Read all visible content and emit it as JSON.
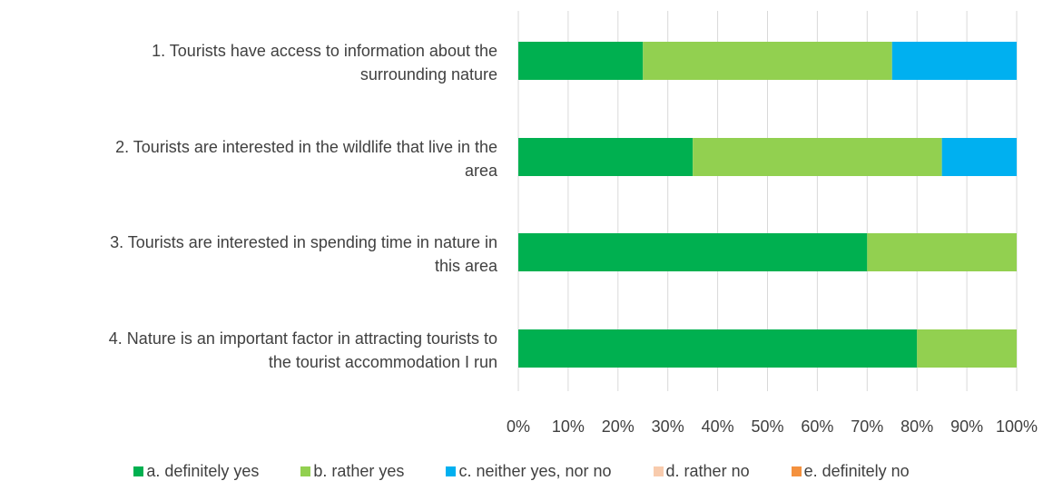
{
  "chart_data": {
    "type": "bar",
    "orientation": "horizontal",
    "stacked": "percent",
    "categories": [
      [
        "1. Tourists have access to information about the",
        "surrounding nature"
      ],
      [
        "2. Tourists are interested in the wildlife that live in the",
        "area"
      ],
      [
        "3. Tourists are interested in spending time in nature in",
        "this area"
      ],
      [
        "4. Nature is an important factor in attracting tourists to",
        "the tourist accommodation I run"
      ]
    ],
    "series": [
      {
        "name": "a. definitely yes",
        "color": "#00b050",
        "values": [
          25,
          35,
          70,
          80
        ]
      },
      {
        "name": "b. rather yes",
        "color": "#92d050",
        "values": [
          50,
          50,
          30,
          20
        ]
      },
      {
        "name": "c. neither yes, nor no",
        "color": "#00b0f0",
        "values": [
          25,
          15,
          0,
          0
        ]
      },
      {
        "name": "d. rather no",
        "color": "#f8cbad",
        "values": [
          0,
          0,
          0,
          0
        ]
      },
      {
        "name": "e. definitely no",
        "color": "#f4913e",
        "values": [
          0,
          0,
          0,
          0
        ]
      }
    ],
    "x_ticks": [
      "0%",
      "10%",
      "20%",
      "30%",
      "40%",
      "50%",
      "60%",
      "70%",
      "80%",
      "90%",
      "100%"
    ],
    "xlim": [
      0,
      100
    ],
    "grid": true,
    "legend_position": "bottom"
  }
}
